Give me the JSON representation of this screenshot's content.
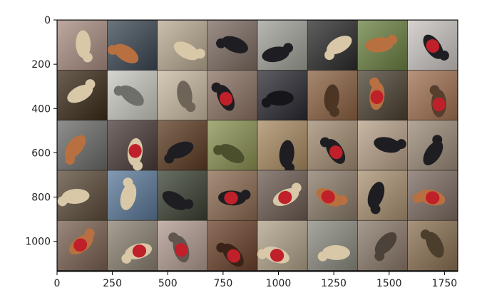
{
  "chart_data": {
    "type": "image-grid",
    "title": "",
    "xlabel": "",
    "ylabel": "",
    "xlim": [
      0,
      1810
    ],
    "ylim": [
      1136,
      0
    ],
    "grid": false,
    "x_ticks": [
      0,
      250,
      500,
      750,
      1000,
      1250,
      1500,
      1750
    ],
    "y_ticks": [
      0,
      200,
      400,
      600,
      800,
      1000
    ],
    "rows": 5,
    "cols": 8,
    "tile_size": 224,
    "tile_padding": 2,
    "tiles": [
      [
        "#a88c80",
        "#3a4652",
        "#b8a890",
        "#7a6a60",
        "#a0a098",
        "#2a2a2a",
        "#6a8040",
        "#c8c4c0"
      ],
      [
        "#3a2a18",
        "#c8c8c0",
        "#c8b8a0",
        "#8a7060",
        "#282830",
        "#8a6040",
        "#4a4030",
        "#a07050"
      ],
      [
        "#6a6a68",
        "#4a3a38",
        "#5a3a20",
        "#8a9050",
        "#a88a60",
        "#a08a70",
        "#b8a088",
        "#9a8a78"
      ],
      [
        "#5a4a38",
        "#5a7898",
        "#3a4030",
        "#8a6a50",
        "#6a5a50",
        "#8a7a68",
        "#a89070",
        "#7a6a60"
      ],
      [
        "#7a6050",
        "#8a8070",
        "#b09a90",
        "#6a4028",
        "#b0a088",
        "#8a8a80",
        "#8a7868",
        "#8a7050"
      ]
    ],
    "tile_subjects": [
      [
        "dog",
        "dog",
        "dog",
        "dog",
        "dog",
        "dog",
        "dog",
        "dog"
      ],
      [
        "dog",
        "dog",
        "dog",
        "dog",
        "dog",
        "dog",
        "dog",
        "dog"
      ],
      [
        "dog",
        "dog",
        "dog",
        "dog",
        "dog",
        "dog",
        "dog",
        "dog"
      ],
      [
        "dog",
        "dog",
        "dog",
        "dog",
        "dog",
        "dog",
        "dog",
        "dog"
      ],
      [
        "dog",
        "dog",
        "dog",
        "dog",
        "dog",
        "dog",
        "dog",
        "dog"
      ]
    ],
    "accent_colors": {
      "dog_sweater": "#c0202a",
      "dark_dog": "#1e1e22",
      "light_dog": "#d8c8a8",
      "tabby_dog": "#b87040"
    },
    "axis_color": "#000000"
  }
}
